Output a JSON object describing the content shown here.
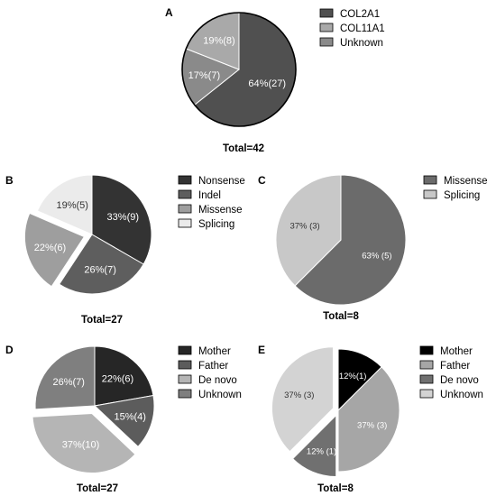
{
  "chart_data": [
    {
      "id": "A",
      "type": "pie",
      "panel_label": "A",
      "total_label": "Total=42",
      "legend_position": "right",
      "slices": [
        {
          "name": "COL2A1",
          "value": 27,
          "label": "64%(27)",
          "color": "#505050"
        },
        {
          "name": "Unknown",
          "value": 7,
          "label": "17%(7)",
          "color": "#8a8a8a"
        },
        {
          "name": "COL11A1",
          "value": 8,
          "label": "19%(8)",
          "color": "#a9a9a9"
        }
      ],
      "legend": [
        {
          "name": "COL2A1",
          "color": "#505050"
        },
        {
          "name": "COL11A1",
          "color": "#a9a9a9"
        },
        {
          "name": "Unknown",
          "color": "#8a8a8a"
        }
      ]
    },
    {
      "id": "B",
      "type": "pie",
      "panel_label": "B",
      "total_label": "Total=27",
      "legend_position": "right",
      "slices": [
        {
          "name": "Nonsense",
          "value": 9,
          "label": "33%(9)",
          "color": "#333333"
        },
        {
          "name": "Indel",
          "value": 7,
          "label": "26%(7)",
          "color": "#5e5e5e"
        },
        {
          "name": "Missense",
          "value": 6,
          "label": "22%(6)",
          "color": "#9e9e9e"
        },
        {
          "name": "Splicing",
          "value": 5,
          "label": "19%(5)",
          "color": "#ebebeb"
        }
      ],
      "legend": [
        {
          "name": "Nonsense",
          "color": "#333333"
        },
        {
          "name": "Indel",
          "color": "#5e5e5e"
        },
        {
          "name": "Missense",
          "color": "#9e9e9e"
        },
        {
          "name": "Splicing",
          "color": "#ebebeb"
        }
      ]
    },
    {
      "id": "C",
      "type": "pie",
      "panel_label": "C",
      "total_label": "Total=8",
      "legend_position": "right",
      "slices": [
        {
          "name": "Missense",
          "value": 5,
          "label": "63% (5)",
          "color": "#6b6b6b"
        },
        {
          "name": "Splicing",
          "value": 3,
          "label": "37% (3)",
          "color": "#c8c8c8"
        }
      ],
      "legend": [
        {
          "name": "Missense",
          "color": "#6b6b6b"
        },
        {
          "name": "Splicing",
          "color": "#c8c8c8"
        }
      ]
    },
    {
      "id": "D",
      "type": "pie",
      "panel_label": "D",
      "total_label": "Total=27",
      "legend_position": "right",
      "slices": [
        {
          "name": "Mother",
          "value": 6,
          "label": "22%(6)",
          "color": "#262626"
        },
        {
          "name": "Father",
          "value": 4,
          "label": "15%(4)",
          "color": "#5c5c5c"
        },
        {
          "name": "De novo",
          "value": 10,
          "label": "37%(10)",
          "color": "#b5b5b5"
        },
        {
          "name": "Unknown",
          "value": 7,
          "label": "26%(7)",
          "color": "#7f7f7f"
        }
      ],
      "legend": [
        {
          "name": "Mother",
          "color": "#262626"
        },
        {
          "name": "Father",
          "color": "#5c5c5c"
        },
        {
          "name": "De novo",
          "color": "#b5b5b5"
        },
        {
          "name": "Unknown",
          "color": "#7f7f7f"
        }
      ]
    },
    {
      "id": "E",
      "type": "pie",
      "panel_label": "E",
      "total_label": "Total=8",
      "legend_position": "right",
      "slices": [
        {
          "name": "Mother",
          "value": 1,
          "label": "12%(1)",
          "color": "#000000"
        },
        {
          "name": "Father",
          "value": 3,
          "label": "37% (3)",
          "color": "#a6a6a6"
        },
        {
          "name": "De novo",
          "value": 1,
          "label": "12% (1)",
          "color": "#707070"
        },
        {
          "name": "Unknown",
          "value": 3,
          "label": "37% (3)",
          "color": "#d3d3d3"
        }
      ],
      "legend": [
        {
          "name": "Mother",
          "color": "#000000"
        },
        {
          "name": "Father",
          "color": "#a6a6a6"
        },
        {
          "name": "De novo",
          "color": "#707070"
        },
        {
          "name": "Unknown",
          "color": "#d3d3d3"
        }
      ]
    }
  ]
}
